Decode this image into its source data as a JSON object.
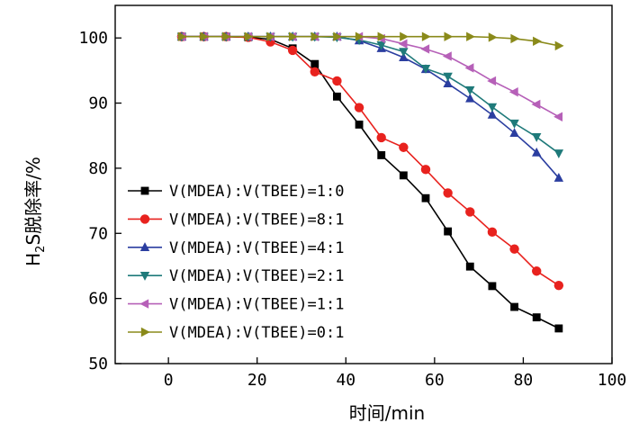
{
  "chart_data": {
    "type": "line",
    "title": "",
    "xlabel": "时间/min",
    "ylabel_main": "H",
    "ylabel_sub": "2",
    "ylabel_rest": "S脱除率/%",
    "xlim": [
      -12,
      100
    ],
    "ylim": [
      50,
      105
    ],
    "xticks": [
      0,
      20,
      40,
      60,
      80,
      100
    ],
    "yticks": [
      50,
      60,
      70,
      80,
      90,
      100
    ],
    "grid": false,
    "legend_position": "bottom-left",
    "x": [
      3,
      8,
      13,
      18,
      23,
      28,
      33,
      38,
      43,
      48,
      53,
      58,
      63,
      68,
      73,
      78,
      83,
      88
    ],
    "series": [
      {
        "name": "V(MDEA):V(TBEE)=1:0",
        "color": "#000000",
        "marker": "square",
        "values": [
          100.2,
          100.2,
          100.2,
          100.1,
          99.8,
          98.4,
          96.0,
          91.0,
          86.7,
          82.0,
          78.9,
          75.4,
          70.3,
          64.9,
          61.9,
          58.7,
          57.1,
          55.4
        ]
      },
      {
        "name": "V(MDEA):V(TBEE)=8:1",
        "color": "#e8221e",
        "marker": "circle",
        "values": [
          100.2,
          100.2,
          100.2,
          100.1,
          99.4,
          98.1,
          94.8,
          93.4,
          89.3,
          84.7,
          83.2,
          79.8,
          76.2,
          73.3,
          70.2,
          67.6,
          64.2,
          62.0
        ]
      },
      {
        "name": "V(MDEA):V(TBEE)=4:1",
        "color": "#2b3ea0",
        "marker": "triangle-up",
        "values": [
          100.2,
          100.2,
          100.2,
          100.2,
          100.2,
          100.2,
          100.2,
          100.2,
          99.6,
          98.4,
          97.0,
          95.2,
          93.0,
          90.7,
          88.2,
          85.4,
          82.4,
          78.5
        ]
      },
      {
        "name": "V(MDEA):V(TBEE)=2:1",
        "color": "#1f7a7a",
        "marker": "triangle-down",
        "values": [
          100.2,
          100.2,
          100.2,
          100.2,
          100.2,
          100.2,
          100.2,
          100.1,
          99.7,
          98.9,
          97.9,
          95.3,
          94.1,
          92.0,
          89.4,
          86.9,
          84.8,
          82.3
        ]
      },
      {
        "name": "V(MDEA):V(TBEE)=1:1",
        "color": "#b660b8",
        "marker": "triangle-left",
        "values": [
          100.2,
          100.2,
          100.2,
          100.2,
          100.2,
          100.2,
          100.2,
          100.2,
          100.2,
          99.9,
          99.1,
          98.3,
          97.2,
          95.4,
          93.4,
          91.7,
          89.8,
          87.9
        ]
      },
      {
        "name": "V(MDEA):V(TBEE)=0:1",
        "color": "#8a8a1a",
        "marker": "triangle-right",
        "values": [
          100.2,
          100.2,
          100.2,
          100.2,
          100.2,
          100.2,
          100.2,
          100.2,
          100.2,
          100.2,
          100.2,
          100.2,
          100.2,
          100.2,
          100.1,
          99.9,
          99.5,
          98.8
        ]
      }
    ]
  }
}
